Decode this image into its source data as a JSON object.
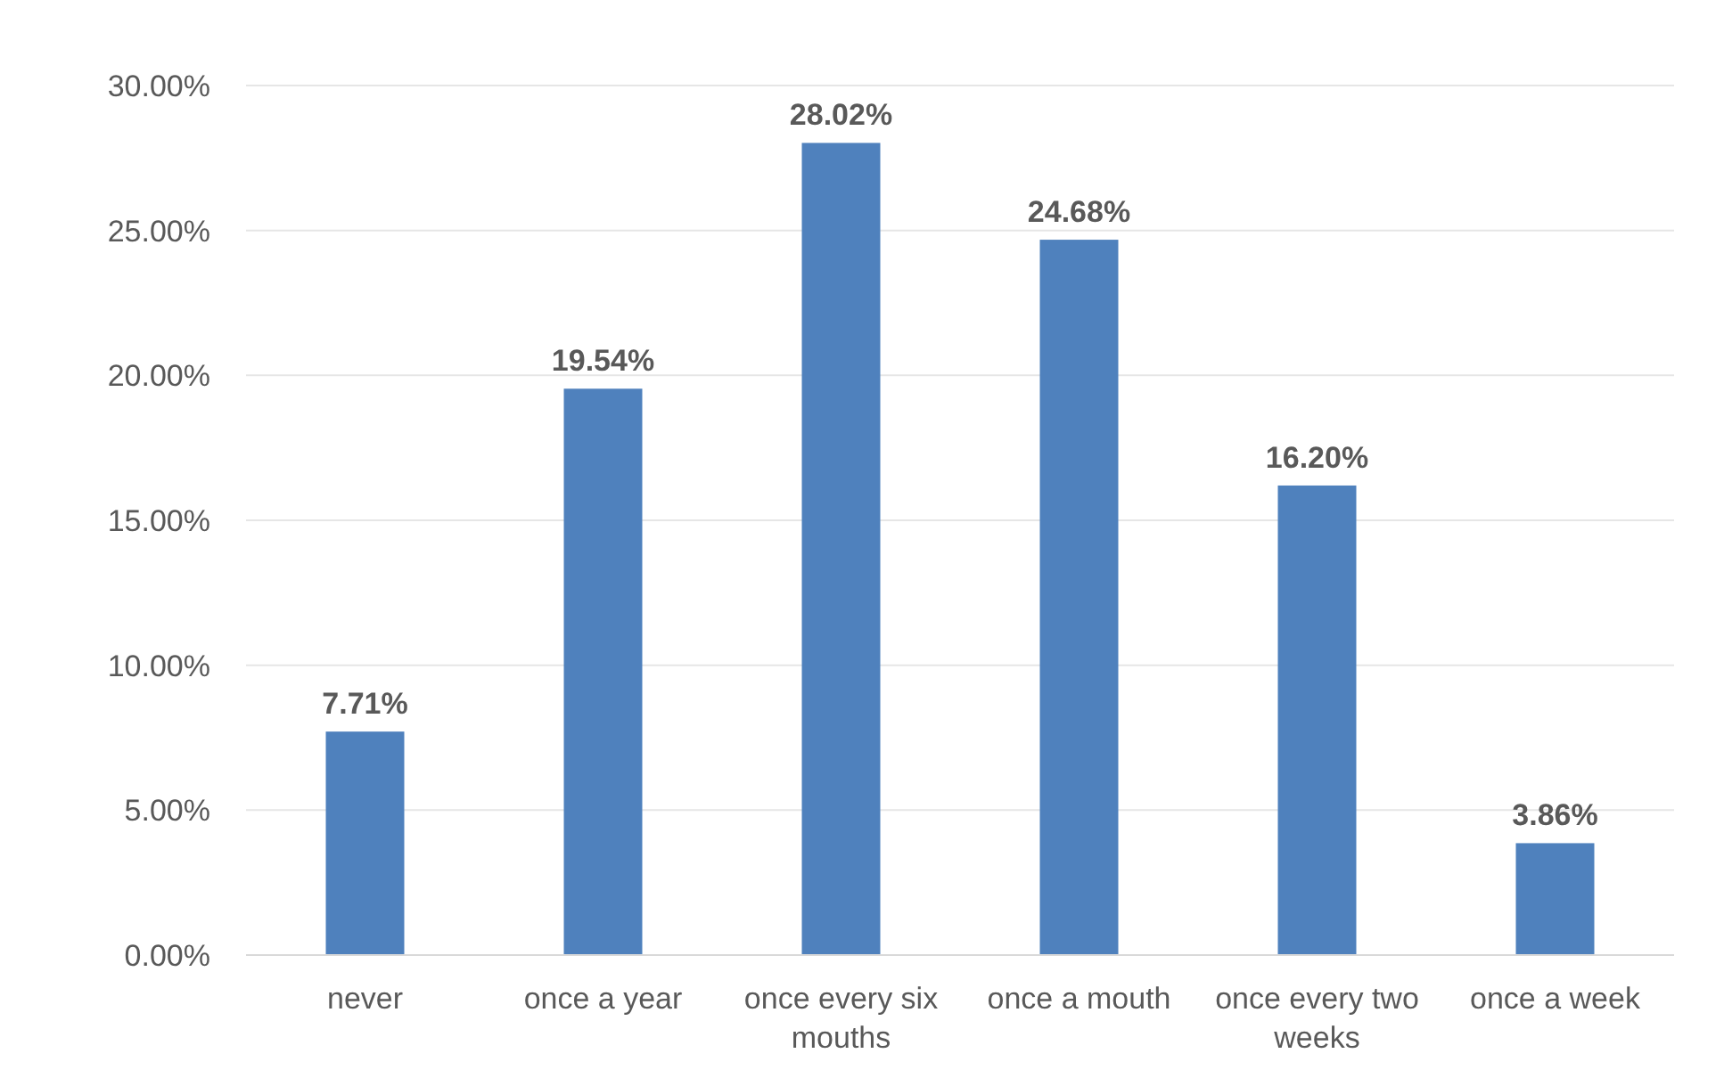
{
  "chart_data": {
    "type": "bar",
    "categories": [
      "never",
      "once a year",
      "once every six mouths",
      "once a mouth",
      "once every two weeks",
      "once a week"
    ],
    "values": [
      7.71,
      19.54,
      28.02,
      24.68,
      16.2,
      3.86
    ],
    "value_labels": [
      "7.71%",
      "19.54%",
      "28.02%",
      "24.68%",
      "16.20%",
      "3.86%"
    ],
    "color": "#4f81bd",
    "ylim": [
      0,
      30
    ],
    "yticks": [
      {
        "value": 0,
        "label": "0.00%"
      },
      {
        "value": 5,
        "label": "5.00%"
      },
      {
        "value": 10,
        "label": "10.00%"
      },
      {
        "value": 15,
        "label": "15.00%"
      },
      {
        "value": 20,
        "label": "20.00%"
      },
      {
        "value": 25,
        "label": "25.00%"
      },
      {
        "value": 30,
        "label": "30.00%"
      }
    ],
    "grid": "y"
  }
}
